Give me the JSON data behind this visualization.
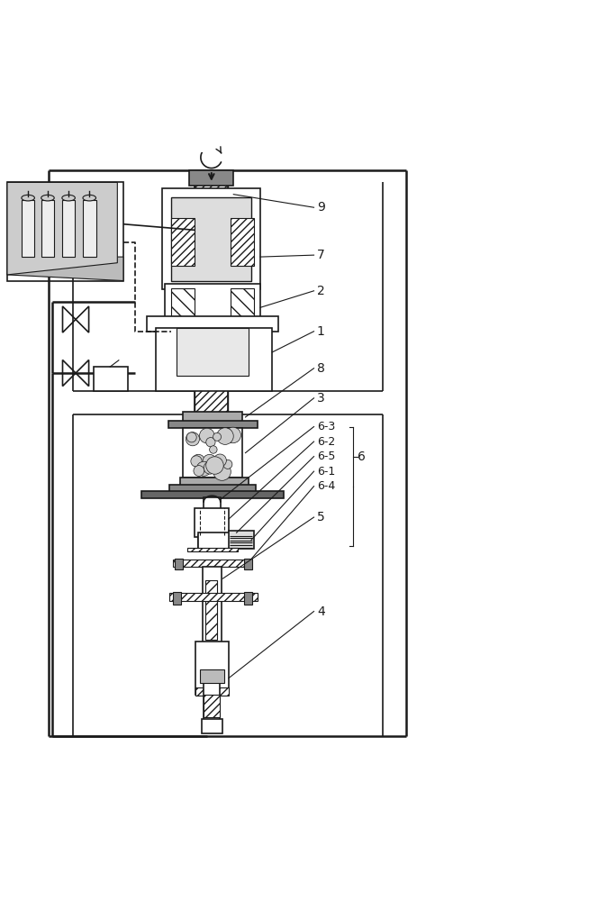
{
  "bg_color": "#ffffff",
  "line_color": "#1a1a1a",
  "fig_width": 6.64,
  "fig_height": 10.0
}
